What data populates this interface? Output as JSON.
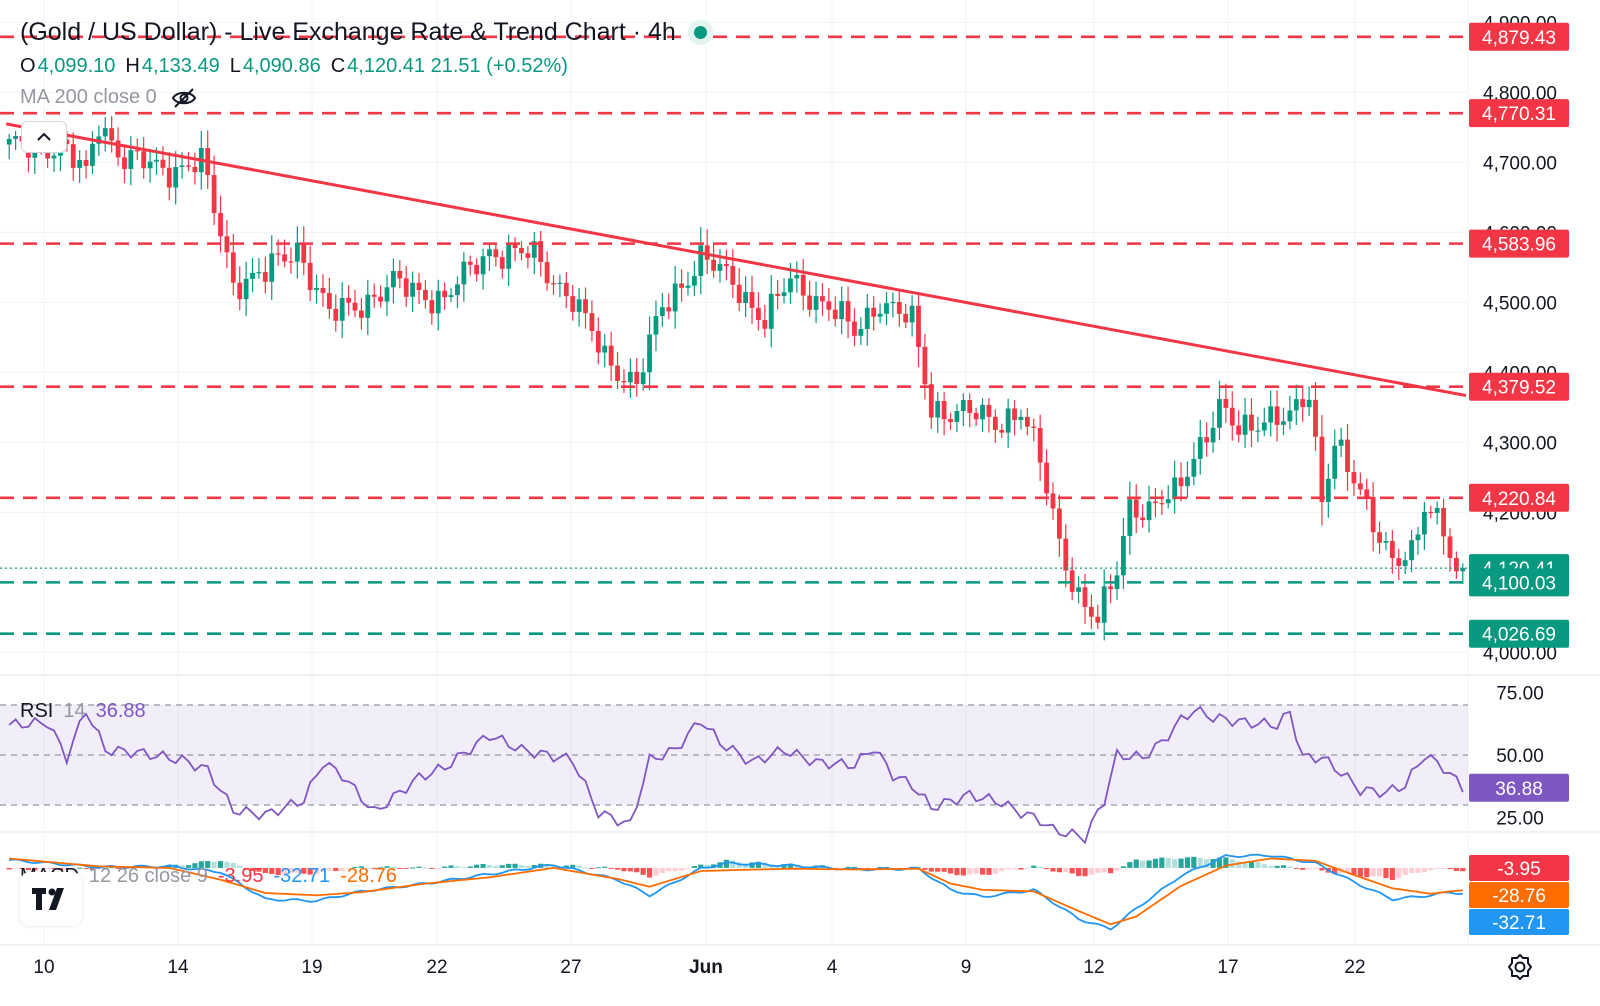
{
  "header": {
    "title": "(Gold / US Dollar) - Live Exchange Rate & Trend Chart · 4h"
  },
  "ohlc": [
    {
      "key": "O",
      "value": "4,099.10"
    },
    {
      "key": "H",
      "value": "4,133.49"
    },
    {
      "key": "L",
      "value": "4,090.86"
    },
    {
      "key": "C",
      "value": "4,120.41 21.51 (+0.52%)"
    }
  ],
  "ma": {
    "label": "MA 200 close 0"
  },
  "rsi": {
    "name": "RSI",
    "params": "14",
    "value": "36.88"
  },
  "macd": {
    "name": "MACD",
    "params": "12 26 close 9",
    "hist": "-3.95",
    "macd": "-32.71",
    "signal": "-28.76"
  },
  "colors": {
    "up": "#089981",
    "down": "#f23645",
    "resistance": "#f23645",
    "support": "#089981",
    "trendline": "#f23645",
    "rsi_line": "#7e57c2",
    "rsi_band": "#7e57c2",
    "macd_line": "#2196f3",
    "signal_line": "#ff6d00"
  },
  "icons": [
    "eye-off-icon",
    "chevron-up-icon",
    "tradingview-logo-icon",
    "settings-icon"
  ],
  "chart_data": [
    {
      "type": "candlestick",
      "title": "(Gold / US Dollar) - Live Exchange Rate & Trend Chart · 4h",
      "x_tick_labels": [
        "10",
        "14",
        "19",
        "22",
        "27",
        "Jun",
        "4",
        "9",
        "12",
        "17",
        "22"
      ],
      "y_tick_labels": [
        "4,900.00",
        "4,800.00",
        "4,700.00",
        "4,600.00",
        "4,500.00",
        "4,400.00",
        "4,300.00",
        "4,200.00",
        "4,100.00",
        "4,000.00"
      ],
      "y_ticks": [
        4900,
        4800,
        4700,
        4600,
        4500,
        4400,
        4300,
        4200,
        4100,
        4000
      ],
      "ylim": [
        3972,
        4932
      ],
      "resistance_levels": [
        {
          "value": 4879.43,
          "label": "4,879.43"
        },
        {
          "value": 4770.31,
          "label": "4,770.31"
        },
        {
          "value": 4583.96,
          "label": "4,583.96"
        },
        {
          "value": 4379.52,
          "label": "4,379.52"
        },
        {
          "value": 4220.84,
          "label": "4,220.84"
        }
      ],
      "support_levels": [
        {
          "value": 4100.03,
          "label": "4,100.03"
        },
        {
          "value": 4026.69,
          "label": "4,026.69"
        }
      ],
      "last_price": {
        "value": 4120.41,
        "label": "4,120.41"
      },
      "trendline": [
        [
          0,
          4755
        ],
        [
          230,
          4367
        ]
      ],
      "anchors": [
        [
          0,
          4720
        ],
        [
          8,
          4725
        ],
        [
          12,
          4680
        ],
        [
          14,
          4760
        ],
        [
          18,
          4705
        ],
        [
          24,
          4690
        ],
        [
          30,
          4700
        ],
        [
          35,
          4530
        ],
        [
          40,
          4540
        ],
        [
          45,
          4580
        ],
        [
          50,
          4480
        ],
        [
          55,
          4500
        ],
        [
          60,
          4525
        ],
        [
          68,
          4505
        ],
        [
          75,
          4575
        ],
        [
          82,
          4565
        ],
        [
          88,
          4505
        ],
        [
          93,
          4420
        ],
        [
          98,
          4385
        ],
        [
          102,
          4490
        ],
        [
          108,
          4565
        ],
        [
          114,
          4520
        ],
        [
          118,
          4475
        ],
        [
          122,
          4530
        ],
        [
          128,
          4495
        ],
        [
          132,
          4455
        ],
        [
          136,
          4505
        ],
        [
          141,
          4470
        ],
        [
          144,
          4350
        ],
        [
          150,
          4340
        ],
        [
          154,
          4330
        ],
        [
          158,
          4345
        ],
        [
          161,
          4270
        ],
        [
          164,
          4160
        ],
        [
          167,
          4080
        ],
        [
          170,
          4040
        ],
        [
          173,
          4120
        ],
        [
          175,
          4215
        ],
        [
          178,
          4200
        ],
        [
          182,
          4225
        ],
        [
          185,
          4285
        ],
        [
          189,
          4345
        ],
        [
          192,
          4315
        ],
        [
          196,
          4340
        ],
        [
          200,
          4330
        ],
        [
          203,
          4370
        ],
        [
          205,
          4225
        ],
        [
          207,
          4305
        ],
        [
          210,
          4240
        ],
        [
          213,
          4185
        ],
        [
          216,
          4140
        ],
        [
          219,
          4135
        ],
        [
          221,
          4200
        ],
        [
          224,
          4185
        ],
        [
          226,
          4115
        ],
        [
          227,
          4120
        ]
      ],
      "rsi": {
        "ylim": [
          20,
          80
        ],
        "overbought": 70,
        "mid": 50,
        "oversold": 30,
        "y_tick_labels": [
          "75.00",
          "50.00",
          "25.00"
        ],
        "y_ticks": [
          75,
          50,
          25
        ],
        "last": 36.88,
        "series": [
          [
            0,
            62
          ],
          [
            6,
            63
          ],
          [
            9,
            49
          ],
          [
            12,
            68
          ],
          [
            15,
            52
          ],
          [
            20,
            51
          ],
          [
            27,
            48
          ],
          [
            31,
            44
          ],
          [
            35,
            28
          ],
          [
            40,
            26
          ],
          [
            46,
            32
          ],
          [
            49,
            47
          ],
          [
            52,
            42
          ],
          [
            57,
            27
          ],
          [
            64,
            41
          ],
          [
            68,
            45
          ],
          [
            75,
            58
          ],
          [
            80,
            52
          ],
          [
            88,
            48
          ],
          [
            92,
            27
          ],
          [
            97,
            22
          ],
          [
            100,
            48
          ],
          [
            104,
            52
          ],
          [
            108,
            64
          ],
          [
            111,
            55
          ],
          [
            116,
            47
          ],
          [
            121,
            52
          ],
          [
            126,
            47
          ],
          [
            132,
            46
          ],
          [
            135,
            53
          ],
          [
            138,
            42
          ],
          [
            141,
            38
          ],
          [
            144,
            29
          ],
          [
            150,
            34
          ],
          [
            155,
            31
          ],
          [
            157,
            28
          ],
          [
            161,
            24
          ],
          [
            163,
            20
          ],
          [
            168,
            17
          ],
          [
            171,
            32
          ],
          [
            173,
            50
          ],
          [
            177,
            49
          ],
          [
            180,
            55
          ],
          [
            183,
            64
          ],
          [
            185,
            68
          ],
          [
            188,
            65
          ],
          [
            193,
            63
          ],
          [
            198,
            62
          ],
          [
            200,
            67
          ],
          [
            202,
            49
          ],
          [
            205,
            49
          ],
          [
            208,
            43
          ],
          [
            211,
            36
          ],
          [
            215,
            35
          ],
          [
            218,
            38
          ],
          [
            221,
            50
          ],
          [
            224,
            45
          ],
          [
            227,
            36.88
          ]
        ]
      },
      "macd": {
        "ylim": [
          -92,
          42
        ],
        "hist_last": -3.95,
        "macd_last": -32.71,
        "signal_last": -28.76,
        "macd_series": [
          [
            0,
            10
          ],
          [
            14,
            1
          ],
          [
            25,
            2
          ],
          [
            33,
            -5
          ],
          [
            40,
            -40
          ],
          [
            48,
            -42
          ],
          [
            55,
            -30
          ],
          [
            65,
            -20
          ],
          [
            75,
            -8
          ],
          [
            85,
            4
          ],
          [
            95,
            -15
          ],
          [
            100,
            -35
          ],
          [
            108,
            -1
          ],
          [
            112,
            6
          ],
          [
            122,
            3
          ],
          [
            132,
            -2
          ],
          [
            142,
            -1
          ],
          [
            147,
            -28
          ],
          [
            152,
            -37
          ],
          [
            160,
            -28
          ],
          [
            167,
            -65
          ],
          [
            172,
            -78
          ],
          [
            176,
            -52
          ],
          [
            183,
            -10
          ],
          [
            190,
            15
          ],
          [
            197,
            16
          ],
          [
            204,
            6
          ],
          [
            210,
            -18
          ],
          [
            216,
            -40
          ],
          [
            222,
            -35
          ],
          [
            225,
            -31
          ],
          [
            227,
            -32.71
          ]
        ],
        "signal_series": [
          [
            0,
            12
          ],
          [
            14,
            2
          ],
          [
            25,
            0
          ],
          [
            33,
            -15
          ],
          [
            40,
            -32
          ],
          [
            48,
            -35
          ],
          [
            55,
            -31
          ],
          [
            65,
            -20
          ],
          [
            75,
            -12
          ],
          [
            85,
            0
          ],
          [
            95,
            -14
          ],
          [
            100,
            -24
          ],
          [
            108,
            -4
          ],
          [
            112,
            -3
          ],
          [
            122,
            -1
          ],
          [
            132,
            -2
          ],
          [
            142,
            -1
          ],
          [
            147,
            -20
          ],
          [
            152,
            -28
          ],
          [
            160,
            -30
          ],
          [
            167,
            -55
          ],
          [
            172,
            -72
          ],
          [
            176,
            -62
          ],
          [
            183,
            -23
          ],
          [
            190,
            3
          ],
          [
            197,
            12
          ],
          [
            204,
            9
          ],
          [
            210,
            -9
          ],
          [
            216,
            -26
          ],
          [
            222,
            -33
          ],
          [
            225,
            -30
          ],
          [
            227,
            -28.76
          ]
        ]
      }
    }
  ]
}
